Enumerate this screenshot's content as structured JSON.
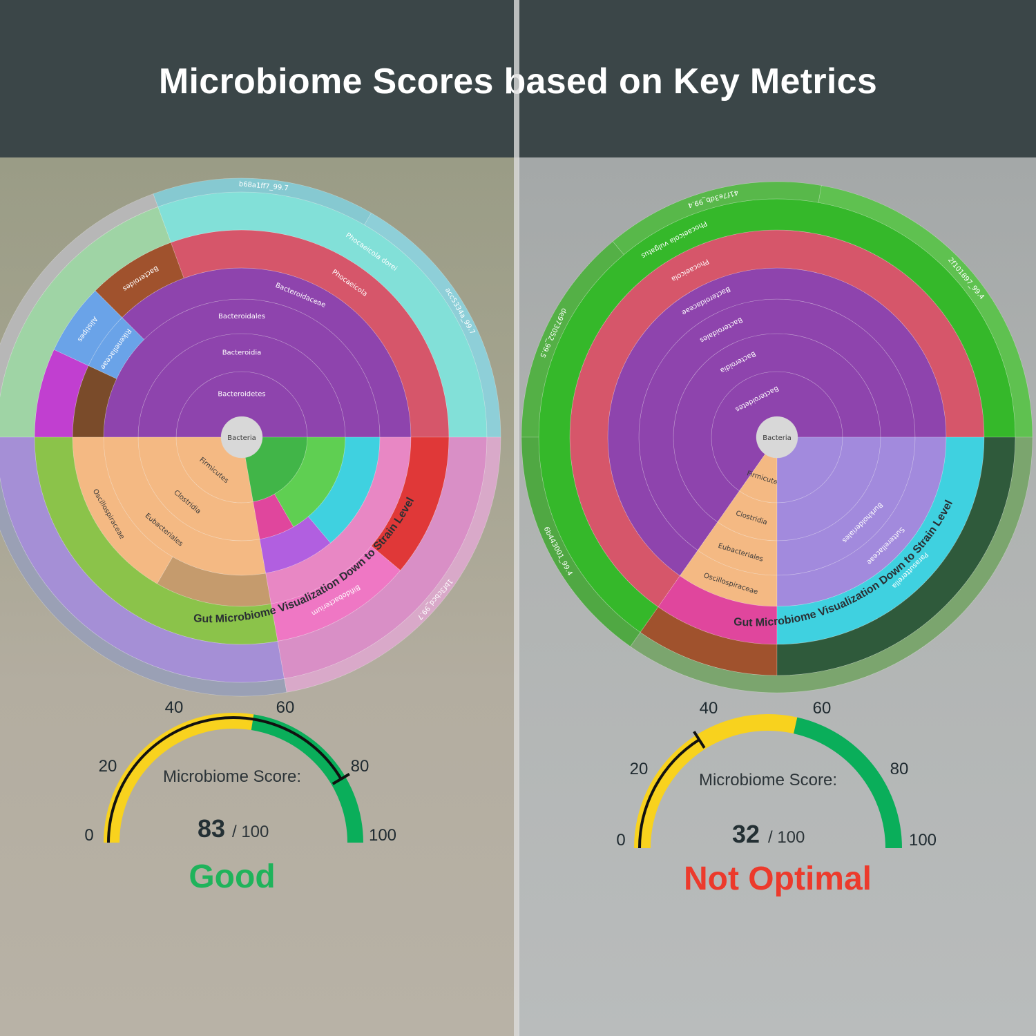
{
  "header": {
    "title": "Microbiome Scores based on Key Metrics"
  },
  "colors": {
    "yellow": "#f8d21e",
    "green": "#0aae5a",
    "good": "#1fb35b",
    "bad": "#ec3a2c"
  },
  "chart_data": [
    {
      "type": "sunburst",
      "title": "Gut Microbiome Visualization Down to Strain Level",
      "center": "Bacteria",
      "segments": [
        {
          "ring": 1,
          "label": "Bacteroidetes",
          "start": 0,
          "end": 180,
          "color": "#8e44ad"
        },
        {
          "ring": 1,
          "label": "Firmicutes",
          "start": 180,
          "end": 280,
          "color": "#f4b983"
        },
        {
          "ring": 1,
          "label": "",
          "start": 280,
          "end": 360,
          "color": "#41b548"
        },
        {
          "ring": 2,
          "label": "Bacteroidia",
          "start": 0,
          "end": 180,
          "color": "#8e44ad"
        },
        {
          "ring": 2,
          "label": "Clostridia",
          "start": 180,
          "end": 280,
          "color": "#f4b983"
        },
        {
          "ring": 2,
          "label": "",
          "start": 280,
          "end": 300,
          "color": "#e0469d"
        },
        {
          "ring": 2,
          "label": "",
          "start": 300,
          "end": 360,
          "color": "#5fcf52"
        },
        {
          "ring": 3,
          "label": "Bacteroidales",
          "start": 0,
          "end": 180,
          "color": "#8e44ad"
        },
        {
          "ring": 3,
          "label": "Eubacteriales",
          "start": 180,
          "end": 280,
          "color": "#f4b983"
        },
        {
          "ring": 3,
          "label": "",
          "start": 280,
          "end": 310,
          "color": "#b15fe0"
        },
        {
          "ring": 3,
          "label": "",
          "start": 310,
          "end": 360,
          "color": "#3fd1e0"
        },
        {
          "ring": 4,
          "label": "Bacteroidaceae",
          "start": 0,
          "end": 135,
          "color": "#8e44ad"
        },
        {
          "ring": 4,
          "label": "Rikenellaceae",
          "start": 135,
          "end": 155,
          "color": "#6aa3e8"
        },
        {
          "ring": 4,
          "label": "",
          "start": 155,
          "end": 180,
          "color": "#7a4b2a"
        },
        {
          "ring": 4,
          "label": "Oscillospiraceae",
          "start": 180,
          "end": 240,
          "color": "#f4b983"
        },
        {
          "ring": 4,
          "label": "",
          "start": 240,
          "end": 280,
          "color": "#c59b6d"
        },
        {
          "ring": 4,
          "label": "",
          "start": 280,
          "end": 360,
          "color": "#e887c4"
        },
        {
          "ring": 5,
          "label": "Phocaeicola",
          "start": 0,
          "end": 110,
          "color": "#d6566a"
        },
        {
          "ring": 5,
          "label": "Bacteroides",
          "start": 110,
          "end": 135,
          "color": "#a0522d"
        },
        {
          "ring": 5,
          "label": "Alistipes",
          "start": 135,
          "end": 155,
          "color": "#6aa3e8"
        },
        {
          "ring": 5,
          "label": "",
          "start": 155,
          "end": 180,
          "color": "#c13fd0"
        },
        {
          "ring": 5,
          "label": "",
          "start": 180,
          "end": 280,
          "color": "#8bc34a"
        },
        {
          "ring": 5,
          "label": "Bifidobacterium",
          "start": 280,
          "end": 320,
          "color": "#ef77c4"
        },
        {
          "ring": 5,
          "label": "",
          "start": 320,
          "end": 360,
          "color": "#e03838"
        },
        {
          "ring": 6,
          "label": "Phocaeicola dorei",
          "start": 0,
          "end": 110,
          "color": "#82e0d8"
        },
        {
          "ring": 6,
          "label": "",
          "start": 110,
          "end": 180,
          "color": "#9fd4a5"
        },
        {
          "ring": 6,
          "label": "",
          "start": 180,
          "end": 280,
          "color": "#a58fd6"
        },
        {
          "ring": 6,
          "label": "",
          "start": 280,
          "end": 360,
          "color": "#d98fc6"
        },
        {
          "ring": 7,
          "label": "acc5334a_99.7",
          "start": 0,
          "end": 60,
          "color": "#8ecfd8"
        },
        {
          "ring": 7,
          "label": "b68a1ff7_99.7",
          "start": 60,
          "end": 110,
          "color": "#86c9d1"
        },
        {
          "ring": 7,
          "label": "",
          "start": 110,
          "end": 180,
          "color": "#b7b7b7"
        },
        {
          "ring": 7,
          "label": "",
          "start": 180,
          "end": 280,
          "color": "#9aa0b5"
        },
        {
          "ring": 7,
          "label": "1bf3cbcd_99.7",
          "start": 280,
          "end": 360,
          "color": "#d9a9c9"
        }
      ]
    },
    {
      "type": "gauge",
      "label": "Microbiome Score:",
      "value": 83,
      "max_label": "/ 100",
      "status": "Good",
      "ticks": [
        "0",
        "20",
        "40",
        "60",
        "80",
        "100"
      ],
      "ranges": [
        {
          "from": 0,
          "to": 55,
          "color": "yellow"
        },
        {
          "from": 55,
          "to": 100,
          "color": "green"
        }
      ]
    },
    {
      "type": "sunburst",
      "title": "Gut Microbiome Visualization Down to Strain Level",
      "center": "Bacteria",
      "segments": [
        {
          "ring": 1,
          "label": "Bacteroidetes",
          "start": 0,
          "end": 235,
          "color": "#8e44ad"
        },
        {
          "ring": 1,
          "label": "Firmicutes",
          "start": 235,
          "end": 270,
          "color": "#f4b983"
        },
        {
          "ring": 1,
          "label": "",
          "start": 270,
          "end": 360,
          "color": "#a28add"
        },
        {
          "ring": 2,
          "label": "Bacteroidia",
          "start": 0,
          "end": 235,
          "color": "#8e44ad"
        },
        {
          "ring": 2,
          "label": "Clostridia",
          "start": 235,
          "end": 270,
          "color": "#f4b983"
        },
        {
          "ring": 2,
          "label": "",
          "start": 270,
          "end": 360,
          "color": "#a28add"
        },
        {
          "ring": 3,
          "label": "Bacteroidales",
          "start": 0,
          "end": 235,
          "color": "#8e44ad"
        },
        {
          "ring": 3,
          "label": "Eubacteriales",
          "start": 235,
          "end": 270,
          "color": "#f4b983"
        },
        {
          "ring": 3,
          "label": "Burkholderiales",
          "start": 270,
          "end": 360,
          "color": "#a28add"
        },
        {
          "ring": 4,
          "label": "Bacteroidaceae",
          "start": 0,
          "end": 235,
          "color": "#8e44ad"
        },
        {
          "ring": 4,
          "label": "Oscillospiraceae",
          "start": 235,
          "end": 270,
          "color": "#f4b983"
        },
        {
          "ring": 4,
          "label": "Sutterellaceae",
          "start": 270,
          "end": 360,
          "color": "#a28add"
        },
        {
          "ring": 5,
          "label": "Phocaeicola",
          "start": 0,
          "end": 235,
          "color": "#d6566a"
        },
        {
          "ring": 5,
          "label": "",
          "start": 235,
          "end": 270,
          "color": "#e0469d"
        },
        {
          "ring": 5,
          "label": "Parasutterella",
          "start": 270,
          "end": 360,
          "color": "#3fd1e0"
        },
        {
          "ring": 6,
          "label": "Phocaeicola vulgatus",
          "start": 0,
          "end": 235,
          "color": "#35b82a"
        },
        {
          "ring": 6,
          "label": "",
          "start": 235,
          "end": 270,
          "color": "#a0522d"
        },
        {
          "ring": 6,
          "label": "",
          "start": 270,
          "end": 360,
          "color": "#2f5a3b"
        },
        {
          "ring": 7,
          "label": "2f101897_99.4",
          "start": 0,
          "end": 80,
          "color": "#5fc150"
        },
        {
          "ring": 7,
          "label": "41f7e3db_99.4",
          "start": 80,
          "end": 130,
          "color": "#58b84a"
        },
        {
          "ring": 7,
          "label": "de973052_99.5",
          "start": 130,
          "end": 180,
          "color": "#54b046"
        },
        {
          "ring": 7,
          "label": "6b443001_99.4",
          "start": 180,
          "end": 235,
          "color": "#50a843"
        },
        {
          "ring": 7,
          "label": "",
          "start": 235,
          "end": 360,
          "color": "#7ba56e"
        }
      ]
    },
    {
      "type": "gauge",
      "label": "Microbiome Score:",
      "value": 32,
      "max_label": "/ 100",
      "status": "Not Optimal",
      "ticks": [
        "0",
        "20",
        "40",
        "60",
        "80",
        "100"
      ],
      "ranges": [
        {
          "from": 0,
          "to": 57,
          "color": "yellow"
        },
        {
          "from": 57,
          "to": 100,
          "color": "green"
        }
      ]
    }
  ]
}
